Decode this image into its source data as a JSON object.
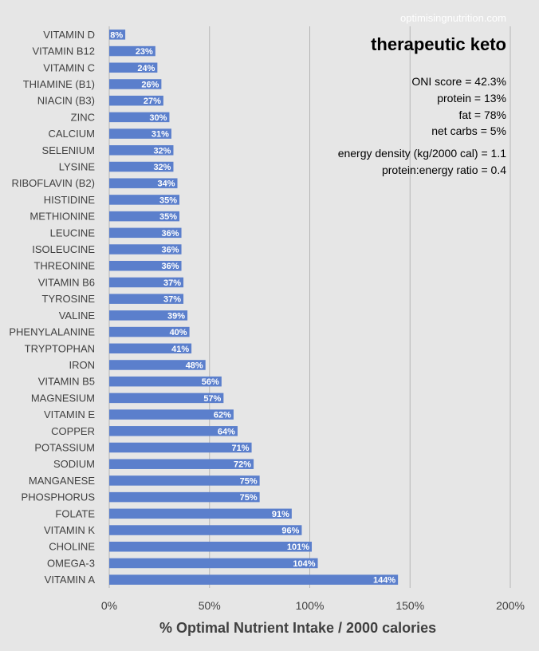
{
  "watermark": "optimisingnutrition.com",
  "chart_title": "therapeutic keto",
  "stats": {
    "oni": "ONI score = 42.3%",
    "protein": "protein = 13%",
    "fat": "fat = 78%",
    "net_carbs": "net carbs = 5%",
    "energy_density": "energy density (kg/2000 cal) = 1.1",
    "protein_energy": "protein:energy ratio = 0.4"
  },
  "chart_data": {
    "type": "bar",
    "orientation": "horizontal",
    "title": "therapeutic keto",
    "xlabel": "% Optimal Nutrient Intake / 2000 calories",
    "ylabel": "",
    "xlim": [
      0,
      200
    ],
    "xticks": [
      0,
      50,
      100,
      150,
      200
    ],
    "xtick_labels": [
      "0%",
      "50%",
      "100%",
      "150%",
      "200%"
    ],
    "grid": "vertical",
    "bar_color": "#5b7fcc",
    "categories": [
      "VITAMIN D",
      "VITAMIN B12",
      "VITAMIN C",
      "THIAMINE (B1)",
      "NIACIN (B3)",
      "ZINC",
      "CALCIUM",
      "SELENIUM",
      "LYSINE",
      "RIBOFLAVIN (B2)",
      "HISTIDINE",
      "METHIONINE",
      "LEUCINE",
      "ISOLEUCINE",
      "THREONINE",
      "VITAMIN B6",
      "TYROSINE",
      "VALINE",
      "PHENYLALANINE",
      "TRYPTOPHAN",
      "IRON",
      "VITAMIN B5",
      "MAGNESIUM",
      "VITAMIN E",
      "COPPER",
      "POTASSIUM",
      "SODIUM",
      "MANGANESE",
      "PHOSPHORUS",
      "FOLATE",
      "VITAMIN K",
      "CHOLINE",
      "OMEGA-3",
      "VITAMIN A"
    ],
    "values": [
      8,
      23,
      24,
      26,
      27,
      30,
      31,
      32,
      32,
      34,
      35,
      35,
      36,
      36,
      36,
      37,
      37,
      39,
      40,
      41,
      48,
      56,
      57,
      62,
      64,
      71,
      72,
      75,
      75,
      91,
      96,
      101,
      104,
      144
    ],
    "value_labels": [
      "8%",
      "23%",
      "24%",
      "26%",
      "27%",
      "30%",
      "31%",
      "32%",
      "32%",
      "34%",
      "35%",
      "35%",
      "36%",
      "36%",
      "36%",
      "37%",
      "37%",
      "39%",
      "40%",
      "41%",
      "48%",
      "56%",
      "57%",
      "62%",
      "64%",
      "71%",
      "72%",
      "75%",
      "75%",
      "91%",
      "96%",
      "101%",
      "104%",
      "144%"
    ]
  }
}
